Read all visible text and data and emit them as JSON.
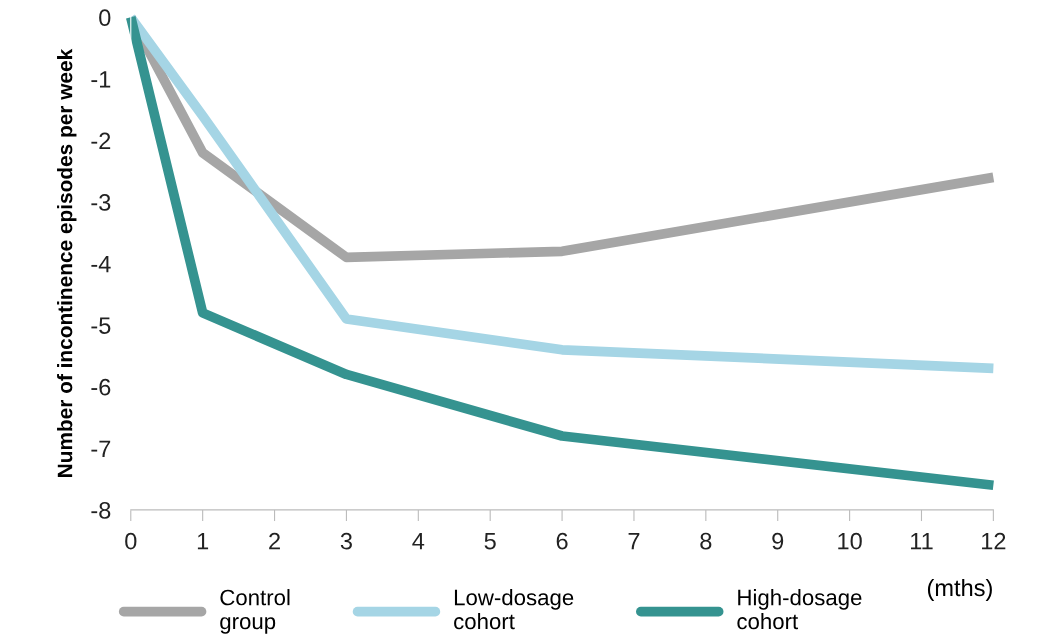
{
  "chart_data": {
    "type": "line",
    "xlabel": "(mths)",
    "ylabel": "Number of incontinence episodes per week",
    "x": [
      0,
      1,
      3,
      6,
      12
    ],
    "series": [
      {
        "name": "Control group",
        "color": "#a6a6a6",
        "values": [
          0,
          -2.2,
          -3.9,
          -3.8,
          -2.6
        ]
      },
      {
        "name": "Low-dosage cohort",
        "color": "#a5d5e5",
        "values": [
          0,
          -1.6,
          -4.9,
          -5.4,
          -5.7
        ]
      },
      {
        "name": "High-dosage cohort",
        "color": "#359390",
        "values": [
          0,
          -4.8,
          -5.8,
          -6.8,
          -7.6
        ]
      }
    ],
    "xlim": [
      0,
      12
    ],
    "xticks": [
      0,
      1,
      2,
      3,
      4,
      5,
      6,
      7,
      8,
      9,
      10,
      11,
      12
    ],
    "ylim": [
      -8,
      0
    ],
    "yticks": [
      -8,
      -7,
      -6,
      -5,
      -4,
      -3,
      -2,
      -1,
      0
    ],
    "grid": false,
    "legend": "bottom",
    "marker": "none",
    "line_style": "solid"
  }
}
